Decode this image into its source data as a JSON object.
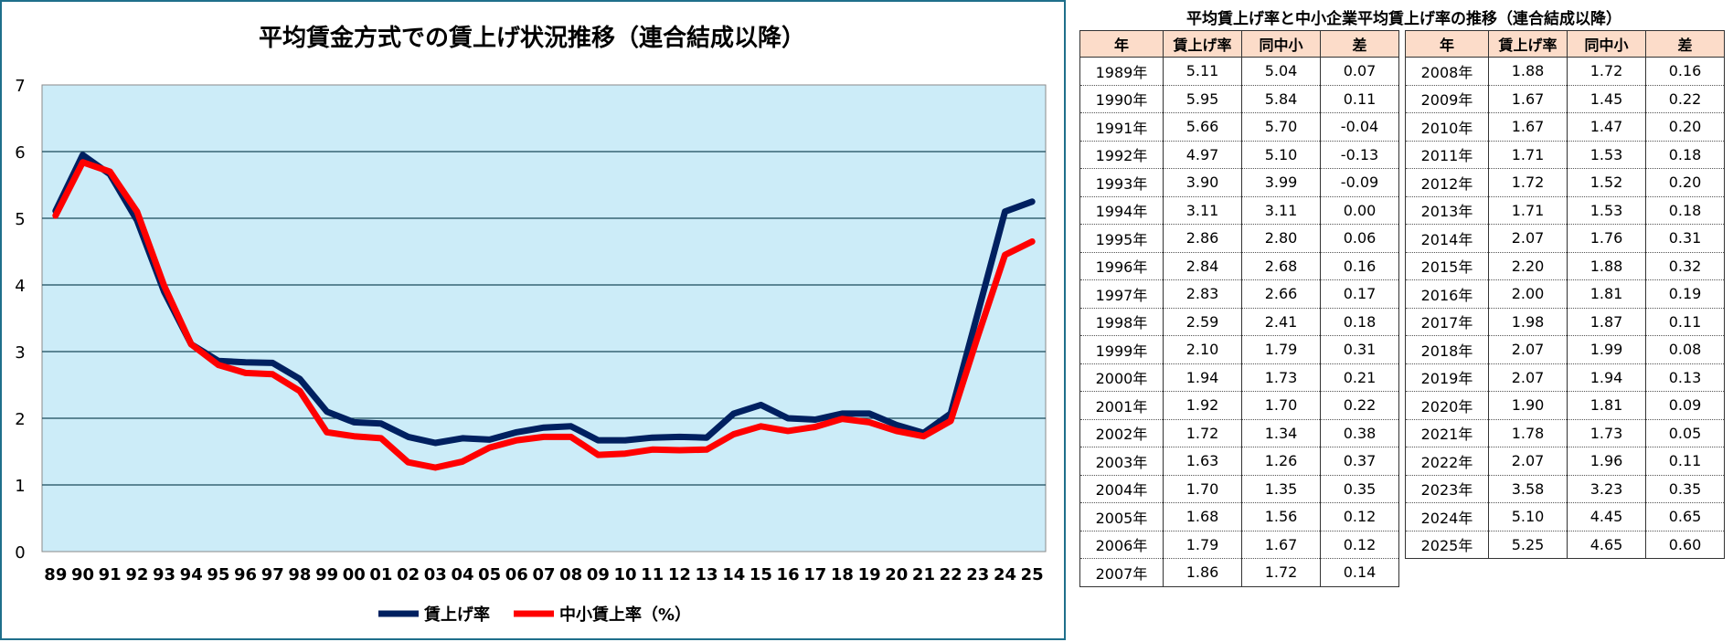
{
  "chart_data": {
    "type": "line",
    "title": "平均賃金方式での賃上げ状況推移（連合結成以降）",
    "categories": [
      "89",
      "90",
      "91",
      "92",
      "93",
      "94",
      "95",
      "96",
      "97",
      "98",
      "99",
      "00",
      "01",
      "02",
      "03",
      "04",
      "05",
      "06",
      "07",
      "08",
      "09",
      "10",
      "11",
      "12",
      "13",
      "14",
      "15",
      "16",
      "17",
      "18",
      "19",
      "20",
      "21",
      "22",
      "23",
      "24",
      "25"
    ],
    "series": [
      {
        "name": "賃上げ率",
        "color": "#002060",
        "values": [
          5.11,
          5.95,
          5.66,
          4.97,
          3.9,
          3.11,
          2.86,
          2.84,
          2.83,
          2.59,
          2.1,
          1.94,
          1.92,
          1.72,
          1.63,
          1.7,
          1.68,
          1.79,
          1.86,
          1.88,
          1.67,
          1.67,
          1.71,
          1.72,
          1.71,
          2.07,
          2.2,
          2.0,
          1.98,
          2.07,
          2.07,
          1.9,
          1.78,
          2.07,
          3.58,
          5.1,
          5.25
        ]
      },
      {
        "name": "中小賃上率（%）",
        "color": "#ff0000",
        "values": [
          5.04,
          5.84,
          5.7,
          5.1,
          3.99,
          3.11,
          2.8,
          2.68,
          2.66,
          2.41,
          1.79,
          1.73,
          1.7,
          1.34,
          1.26,
          1.35,
          1.56,
          1.67,
          1.72,
          1.72,
          1.45,
          1.47,
          1.53,
          1.52,
          1.53,
          1.76,
          1.88,
          1.81,
          1.87,
          1.99,
          1.94,
          1.81,
          1.73,
          1.96,
          3.23,
          4.45,
          4.65
        ]
      }
    ],
    "ylim": [
      0,
      7
    ],
    "yticks": [
      "0",
      "1",
      "2",
      "3",
      "4",
      "5",
      "6",
      "7"
    ],
    "grid": true,
    "plot_background": "#ccecf8",
    "legend_position": "bottom"
  },
  "table": {
    "title": "平均賃上げ率と中小企業平均賃上げ率の推移（連合結成以降）",
    "header_color": "#fcdcc9",
    "headers": [
      "年",
      "賃上げ率",
      "同中小",
      "差"
    ],
    "left_rows": [
      [
        "1989年",
        "5.11",
        "5.04",
        "0.07"
      ],
      [
        "1990年",
        "5.95",
        "5.84",
        "0.11"
      ],
      [
        "1991年",
        "5.66",
        "5.70",
        "-0.04"
      ],
      [
        "1992年",
        "4.97",
        "5.10",
        "-0.13"
      ],
      [
        "1993年",
        "3.90",
        "3.99",
        "-0.09"
      ],
      [
        "1994年",
        "3.11",
        "3.11",
        "0.00"
      ],
      [
        "1995年",
        "2.86",
        "2.80",
        "0.06"
      ],
      [
        "1996年",
        "2.84",
        "2.68",
        "0.16"
      ],
      [
        "1997年",
        "2.83",
        "2.66",
        "0.17"
      ],
      [
        "1998年",
        "2.59",
        "2.41",
        "0.18"
      ],
      [
        "1999年",
        "2.10",
        "1.79",
        "0.31"
      ],
      [
        "2000年",
        "1.94",
        "1.73",
        "0.21"
      ],
      [
        "2001年",
        "1.92",
        "1.70",
        "0.22"
      ],
      [
        "2002年",
        "1.72",
        "1.34",
        "0.38"
      ],
      [
        "2003年",
        "1.63",
        "1.26",
        "0.37"
      ],
      [
        "2004年",
        "1.70",
        "1.35",
        "0.35"
      ],
      [
        "2005年",
        "1.68",
        "1.56",
        "0.12"
      ],
      [
        "2006年",
        "1.79",
        "1.67",
        "0.12"
      ],
      [
        "2007年",
        "1.86",
        "1.72",
        "0.14"
      ]
    ],
    "right_rows": [
      [
        "2008年",
        "1.88",
        "1.72",
        "0.16"
      ],
      [
        "2009年",
        "1.67",
        "1.45",
        "0.22"
      ],
      [
        "2010年",
        "1.67",
        "1.47",
        "0.20"
      ],
      [
        "2011年",
        "1.71",
        "1.53",
        "0.18"
      ],
      [
        "2012年",
        "1.72",
        "1.52",
        "0.20"
      ],
      [
        "2013年",
        "1.71",
        "1.53",
        "0.18"
      ],
      [
        "2014年",
        "2.07",
        "1.76",
        "0.31"
      ],
      [
        "2015年",
        "2.20",
        "1.88",
        "0.32"
      ],
      [
        "2016年",
        "2.00",
        "1.81",
        "0.19"
      ],
      [
        "2017年",
        "1.98",
        "1.87",
        "0.11"
      ],
      [
        "2018年",
        "2.07",
        "1.99",
        "0.08"
      ],
      [
        "2019年",
        "2.07",
        "1.94",
        "0.13"
      ],
      [
        "2020年",
        "1.90",
        "1.81",
        "0.09"
      ],
      [
        "2021年",
        "1.78",
        "1.73",
        "0.05"
      ],
      [
        "2022年",
        "2.07",
        "1.96",
        "0.11"
      ],
      [
        "2023年",
        "3.58",
        "3.23",
        "0.35"
      ],
      [
        "2024年",
        "5.10",
        "4.45",
        "0.65"
      ],
      [
        "2025年",
        "5.25",
        "4.65",
        "0.60"
      ]
    ]
  }
}
